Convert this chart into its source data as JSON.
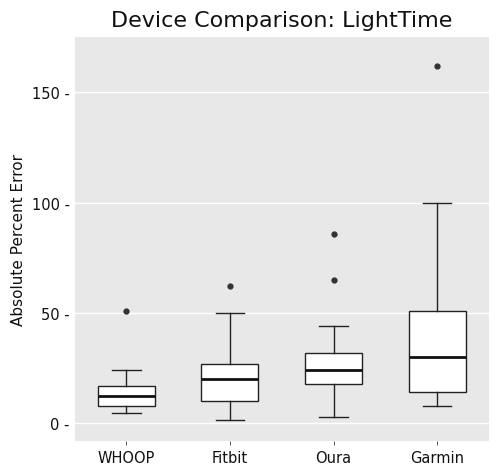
{
  "title": "Device Comparison: LightTime",
  "ylabel": "Absolute Percent Error",
  "xlabel": "",
  "categories": [
    "WHOOP",
    "Fitbit",
    "Oura",
    "Garmin"
  ],
  "boxplot_stats": [
    {
      "label": "WHOOP",
      "whislo": 4.5,
      "q1": 8.0,
      "med": 12.5,
      "q3": 17.0,
      "whishi": 24.0,
      "fliers": [
        51.0
      ]
    },
    {
      "label": "Fitbit",
      "whislo": 1.5,
      "q1": 10.0,
      "med": 20.0,
      "q3": 27.0,
      "whishi": 50.0,
      "fliers": [
        62.0
      ]
    },
    {
      "label": "Oura",
      "whislo": 3.0,
      "q1": 18.0,
      "med": 24.0,
      "q3": 32.0,
      "whishi": 44.0,
      "fliers": [
        65.0,
        86.0
      ]
    },
    {
      "label": "Garmin",
      "whislo": 8.0,
      "q1": 14.0,
      "med": 30.0,
      "q3": 51.0,
      "whishi": 100.0,
      "fliers": [
        162.0
      ]
    }
  ],
  "ylim": [
    -8,
    175
  ],
  "yticks": [
    0,
    50,
    100,
    150
  ],
  "plot_bg_color": "#e8e8e8",
  "fig_bg_color": "#ffffff",
  "box_facecolor": "white",
  "box_edgecolor": "#222222",
  "median_color": "#111111",
  "whisker_color": "#222222",
  "flier_color": "#333333",
  "grid_color": "#ffffff",
  "title_fontsize": 16,
  "label_fontsize": 11,
  "tick_fontsize": 10.5
}
